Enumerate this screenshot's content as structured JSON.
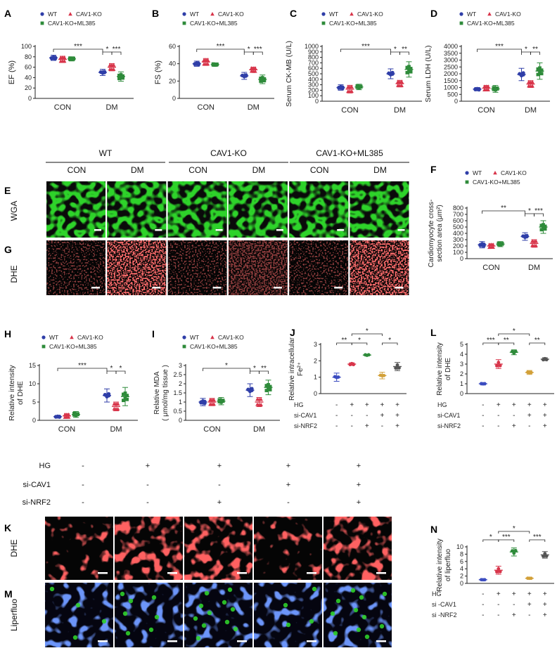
{
  "colors": {
    "wt": "#2f3ea8",
    "ko": "#d8354a",
    "ml": "#2e8b3a",
    "si_cav1": "#d2a038",
    "si_both": "#555555",
    "micro_green": "#2fcf2a",
    "micro_red": "#ff2a2a",
    "micro_blue": "#2b4cd6"
  },
  "legend": {
    "wt": "WT",
    "ko": "CAV1-KO",
    "ml": "CAV1-KO+ML385"
  },
  "group_labels": [
    "CON",
    "DM"
  ],
  "treat": {
    "hg": "HG",
    "si_cav1": "si-CAV1",
    "si_nrf2": "si-NRF2",
    "si_cav1_alt": "si -CAV1",
    "si_nrf2_alt": "si -NRF2"
  },
  "images": {
    "headers": [
      "WT",
      "CAV1-KO",
      "CAV1-KO+ML385"
    ],
    "sub": [
      "CON",
      "DM",
      "CON",
      "DM",
      "CON",
      "DM"
    ],
    "row_labels": {
      "wga": "WGA",
      "dhe": "DHE",
      "liperfluo": "Liperfluo"
    },
    "cell_grid": {
      "hg": [
        "-",
        "+",
        "+",
        "+",
        "+"
      ],
      "si_cav1": [
        "-",
        "-",
        "-",
        "+",
        "+"
      ],
      "si_nrf2": [
        "-",
        "-",
        "+",
        "-",
        "+"
      ]
    }
  },
  "panels": {
    "A": "A",
    "B": "B",
    "C": "C",
    "D": "D",
    "E": "E",
    "F": "F",
    "G": "G",
    "H": "H",
    "I": "I",
    "J": "J",
    "K": "K",
    "L": "L",
    "M": "M",
    "N": "N"
  },
  "chart_data": [
    {
      "panel": "A",
      "type": "scatter",
      "ylabel": "EF (%)",
      "ylim": [
        0,
        100
      ],
      "yticks": [
        0,
        20,
        40,
        60,
        80,
        100
      ],
      "categories": [
        "CON",
        "DM"
      ],
      "series": [
        {
          "name": "WT",
          "values": [
            {
              "mean": 78,
              "sd": 5
            },
            {
              "mean": 50,
              "sd": 6
            }
          ]
        },
        {
          "name": "CAV1-KO",
          "values": [
            {
              "mean": 75,
              "sd": 6
            },
            {
              "mean": 60,
              "sd": 7
            }
          ]
        },
        {
          "name": "CAV1-KO+ML385",
          "values": [
            {
              "mean": 76,
              "sd": 4
            },
            {
              "mean": 42,
              "sd": 9
            }
          ]
        }
      ],
      "annotations": [
        "***",
        "*",
        "***"
      ]
    },
    {
      "panel": "B",
      "type": "scatter",
      "ylabel": "FS (%)",
      "ylim": [
        0,
        60
      ],
      "yticks": [
        0,
        20,
        40,
        60
      ],
      "categories": [
        "CON",
        "DM"
      ],
      "series": [
        {
          "name": "WT",
          "values": [
            {
              "mean": 40,
              "sd": 3
            },
            {
              "mean": 26,
              "sd": 4
            }
          ]
        },
        {
          "name": "CAV1-KO",
          "values": [
            {
              "mean": 42,
              "sd": 4
            },
            {
              "mean": 33,
              "sd": 3
            }
          ]
        },
        {
          "name": "CAV1-KO+ML385",
          "values": [
            {
              "mean": 39,
              "sd": 2
            },
            {
              "mean": 22,
              "sd": 5
            }
          ]
        }
      ],
      "annotations": [
        "***",
        "*",
        "***"
      ]
    },
    {
      "panel": "C",
      "type": "scatter",
      "ylabel": "Serum CK-MB (U/L)",
      "ylim": [
        0,
        1000
      ],
      "yticks": [
        0,
        100,
        200,
        300,
        400,
        500,
        600,
        700,
        800,
        900,
        1000
      ],
      "categories": [
        "CON",
        "DM"
      ],
      "series": [
        {
          "name": "WT",
          "values": [
            {
              "mean": 250,
              "sd": 50
            },
            {
              "mean": 500,
              "sd": 90
            }
          ]
        },
        {
          "name": "CAV1-KO",
          "values": [
            {
              "mean": 220,
              "sd": 70
            },
            {
              "mean": 320,
              "sd": 60
            }
          ]
        },
        {
          "name": "CAV1-KO+ML385",
          "values": [
            {
              "mean": 260,
              "sd": 50
            },
            {
              "mean": 580,
              "sd": 140
            }
          ]
        }
      ],
      "annotations": [
        "***",
        "*",
        "**"
      ]
    },
    {
      "panel": "D",
      "type": "scatter",
      "ylabel": "Serum LDH (U/L)",
      "ylim": [
        0,
        4000
      ],
      "yticks": [
        0,
        500,
        1000,
        1500,
        2000,
        2500,
        3000,
        3500,
        4000
      ],
      "categories": [
        "CON",
        "DM"
      ],
      "series": [
        {
          "name": "WT",
          "values": [
            {
              "mean": 880,
              "sd": 120
            },
            {
              "mean": 1950,
              "sd": 450
            }
          ]
        },
        {
          "name": "CAV1-KO",
          "values": [
            {
              "mean": 950,
              "sd": 200
            },
            {
              "mean": 1250,
              "sd": 250
            }
          ]
        },
        {
          "name": "CAV1-KO+ML385",
          "values": [
            {
              "mean": 900,
              "sd": 250
            },
            {
              "mean": 2200,
              "sd": 600
            }
          ]
        }
      ],
      "annotations": [
        "***",
        "*",
        "**"
      ]
    },
    {
      "panel": "F",
      "type": "scatter",
      "ylabel": "Cardiomyocyte cross-section area (μm²)",
      "ylim": [
        0,
        800
      ],
      "yticks": [
        0,
        100,
        200,
        300,
        400,
        500,
        600,
        700,
        800
      ],
      "categories": [
        "CON",
        "DM"
      ],
      "series": [
        {
          "name": "WT",
          "values": [
            {
              "mean": 220,
              "sd": 50
            },
            {
              "mean": 350,
              "sd": 60
            }
          ]
        },
        {
          "name": "CAV1-KO",
          "values": [
            {
              "mean": 200,
              "sd": 35
            },
            {
              "mean": 240,
              "sd": 60
            }
          ]
        },
        {
          "name": "CAV1-KO+ML385",
          "values": [
            {
              "mean": 230,
              "sd": 40
            },
            {
              "mean": 500,
              "sd": 100
            }
          ]
        }
      ],
      "annotations": [
        "**",
        "*",
        "***"
      ]
    },
    {
      "panel": "H",
      "type": "scatter",
      "ylabel": "Relative intensity of DHE",
      "ylim": [
        0,
        15
      ],
      "yticks": [
        0,
        5,
        10,
        15
      ],
      "categories": [
        "CON",
        "DM"
      ],
      "series": [
        {
          "name": "WT",
          "values": [
            {
              "mean": 1,
              "sd": 0.3
            },
            {
              "mean": 6.8,
              "sd": 1.8
            }
          ]
        },
        {
          "name": "CAV1-KO",
          "values": [
            {
              "mean": 1.2,
              "sd": 0.6
            },
            {
              "mean": 3.8,
              "sd": 1.2
            }
          ]
        },
        {
          "name": "CAV1-KO+ML385",
          "values": [
            {
              "mean": 1.6,
              "sd": 0.8
            },
            {
              "mean": 6.5,
              "sd": 2.5
            }
          ]
        }
      ],
      "annotations": [
        "***",
        "*",
        "*"
      ]
    },
    {
      "panel": "I",
      "type": "scatter",
      "ylabel": "Relative MDA ( μmol/mg tissue )",
      "ylim": [
        0,
        3
      ],
      "yticks": [
        0,
        0.5,
        1,
        1.5,
        2,
        2.5,
        3
      ],
      "categories": [
        "CON",
        "DM"
      ],
      "series": [
        {
          "name": "WT",
          "values": [
            {
              "mean": 1,
              "sd": 0.2
            },
            {
              "mean": 1.65,
              "sd": 0.35
            }
          ]
        },
        {
          "name": "CAV1-KO",
          "values": [
            {
              "mean": 1,
              "sd": 0.2
            },
            {
              "mean": 1,
              "sd": 0.25
            }
          ]
        },
        {
          "name": "CAV1-KO+ML385",
          "values": [
            {
              "mean": 1.05,
              "sd": 0.2
            },
            {
              "mean": 1.8,
              "sd": 0.4
            }
          ]
        }
      ],
      "annotations": [
        "*",
        "*",
        "**"
      ]
    },
    {
      "panel": "J",
      "type": "scatter",
      "ylabel": "Relative intracellular Fe²⁺",
      "ylim": [
        0,
        3
      ],
      "yticks": [
        0,
        1,
        2,
        3
      ],
      "groups": [
        {
          "mean": 1,
          "sd": 0.25
        },
        {
          "mean": 1.8,
          "sd": 0.08
        },
        {
          "mean": 2.35,
          "sd": 0.05
        },
        {
          "mean": 1.1,
          "sd": 0.2
        },
        {
          "mean": 1.65,
          "sd": 0.25
        }
      ],
      "annotations": [
        "**",
        "*",
        "*",
        "*"
      ]
    },
    {
      "panel": "L",
      "type": "scatter",
      "ylabel": "Relative intensity of DHE",
      "ylim": [
        0,
        5
      ],
      "yticks": [
        0,
        1,
        2,
        3,
        4,
        5
      ],
      "groups": [
        {
          "mean": 1,
          "sd": 0.12
        },
        {
          "mean": 3,
          "sd": 0.45
        },
        {
          "mean": 4.2,
          "sd": 0.25
        },
        {
          "mean": 2.15,
          "sd": 0.2
        },
        {
          "mean": 3.5,
          "sd": 0.15
        }
      ],
      "annotations": [
        "***",
        "**",
        "*",
        "**"
      ]
    },
    {
      "panel": "N",
      "type": "scatter",
      "ylabel": "Relative intensity of liperfluo",
      "ylim": [
        0,
        10
      ],
      "yticks": [
        0,
        2,
        4,
        6,
        8,
        10
      ],
      "groups": [
        {
          "mean": 1,
          "sd": 0.1
        },
        {
          "mean": 3.6,
          "sd": 1.1
        },
        {
          "mean": 8.6,
          "sd": 1.1
        },
        {
          "mean": 1.4,
          "sd": 0.2
        },
        {
          "mean": 7.8,
          "sd": 0.9
        }
      ],
      "annotations": [
        "*",
        "***",
        "*",
        "***"
      ]
    }
  ]
}
